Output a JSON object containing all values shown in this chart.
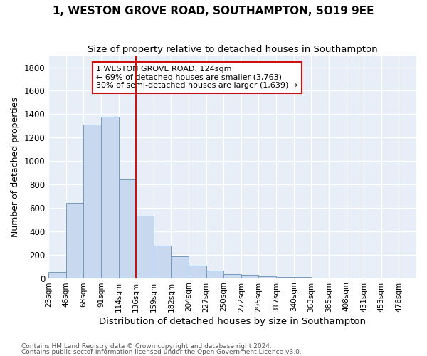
{
  "title": "1, WESTON GROVE ROAD, SOUTHAMPTON, SO19 9EE",
  "subtitle": "Size of property relative to detached houses in Southampton",
  "xlabel": "Distribution of detached houses by size in Southampton",
  "ylabel": "Number of detached properties",
  "bar_color": "#c8d8ee",
  "bar_edge_color": "#7799bb",
  "background_color": "#e8eef8",
  "grid_color": "#ffffff",
  "vline_color": "#cc1111",
  "annotation_line0": "1 WESTON GROVE ROAD: 124sqm",
  "annotation_line1": "← 69% of detached houses are smaller (3,763)",
  "annotation_line2": "30% of semi-detached houses are larger (1,639) →",
  "footer1": "Contains HM Land Registry data © Crown copyright and database right 2024.",
  "footer2": "Contains public sector information licensed under the Open Government Licence v3.0.",
  "bin_labels": [
    "23sqm",
    "46sqm",
    "68sqm",
    "91sqm",
    "114sqm",
    "136sqm",
    "159sqm",
    "182sqm",
    "204sqm",
    "227sqm",
    "250sqm",
    "272sqm",
    "295sqm",
    "317sqm",
    "340sqm",
    "363sqm",
    "385sqm",
    "408sqm",
    "431sqm",
    "453sqm",
    "476sqm"
  ],
  "bar_heights": [
    55,
    640,
    1310,
    1380,
    845,
    530,
    275,
    185,
    105,
    65,
    35,
    25,
    15,
    10,
    10,
    0,
    0,
    0,
    0,
    0
  ],
  "ylim_max": 1900,
  "yticks": [
    0,
    200,
    400,
    600,
    800,
    1000,
    1200,
    1400,
    1600,
    1800
  ],
  "vline_bin_index": 4,
  "n_bins": 20
}
